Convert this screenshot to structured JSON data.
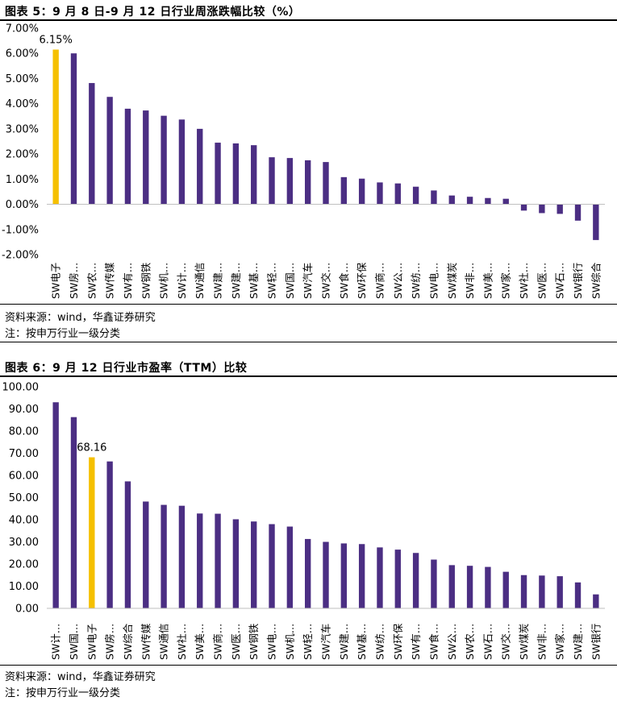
{
  "charts": [
    {
      "title": "图表 5：9 月 8 日-9 月 12 日行业周涨跌幅比较（%）",
      "source": "资料来源：wind，华鑫证券研究",
      "note": "注：按申万行业一级分类",
      "chart_data": {
        "type": "bar",
        "categories": [
          "SW电子",
          "SW房…",
          "SW农…",
          "SW传媒",
          "SW有…",
          "SW钢铁",
          "SW机…",
          "SW计…",
          "SW通信",
          "SW建…",
          "SW建…",
          "SW基…",
          "SW轻…",
          "SW国…",
          "SW汽车",
          "SW交…",
          "SW食…",
          "SW环保",
          "SW商…",
          "SW公…",
          "SW纺…",
          "SW电…",
          "SW煤炭",
          "SW非…",
          "SW美…",
          "SW家…",
          "SW社…",
          "SW医…",
          "SW石…",
          "SW银行",
          "SW综合"
        ],
        "values": [
          6.15,
          6.0,
          4.82,
          4.27,
          3.8,
          3.73,
          3.52,
          3.37,
          3.0,
          2.45,
          2.42,
          2.35,
          1.87,
          1.84,
          1.75,
          1.68,
          1.08,
          1.02,
          0.87,
          0.83,
          0.7,
          0.55,
          0.35,
          0.3,
          0.25,
          0.22,
          -0.25,
          -0.35,
          -0.38,
          -0.65,
          -1.42
        ],
        "highlight_index": 0,
        "highlight_label": "6.15%",
        "ylim": [
          -2,
          7
        ],
        "yticks": [
          -2,
          -1,
          0,
          1,
          2,
          3,
          4,
          5,
          6,
          7
        ],
        "ytick_labels": [
          "-2.00%",
          "-1.00%",
          "0.00%",
          "1.00%",
          "2.00%",
          "3.00%",
          "4.00%",
          "5.00%",
          "6.00%",
          "7.00%"
        ],
        "colors": {
          "bar": "#4B2E83",
          "highlight": "#F5C000",
          "axis": "#BFBFBF"
        },
        "grid": false
      }
    },
    {
      "title": "图表 6：9 月 12 日行业市盈率（TTM）比较",
      "source": "资料来源：wind，华鑫证券研究",
      "note": "注：按申万行业一级分类",
      "chart_data": {
        "type": "bar",
        "categories": [
          "SW计…",
          "SW国…",
          "SW电子",
          "SW房…",
          "SW综合",
          "SW传媒",
          "SW通信",
          "SW社…",
          "SW美…",
          "SW商…",
          "SW医…",
          "SW钢铁",
          "SW电…",
          "SW机…",
          "SW轻…",
          "SW汽车",
          "SW建…",
          "SW基…",
          "SW纺…",
          "SW环保",
          "SW有…",
          "SW食…",
          "SW公…",
          "SW农…",
          "SW石…",
          "SW交…",
          "SW煤炭",
          "SW非…",
          "SW家…",
          "SW建…",
          "SW银行"
        ],
        "values": [
          93.0,
          86.3,
          68.16,
          66.3,
          57.3,
          48.2,
          46.7,
          46.3,
          42.8,
          42.7,
          40.2,
          39.2,
          38.0,
          36.9,
          31.3,
          30.0,
          29.3,
          29.0,
          27.5,
          26.5,
          25.0,
          22.0,
          19.5,
          19.2,
          18.7,
          16.5,
          15.0,
          14.8,
          14.5,
          11.7,
          6.3
        ],
        "highlight_index": 2,
        "highlight_label": "68.16",
        "ylim": [
          0,
          100
        ],
        "yticks": [
          0,
          10,
          20,
          30,
          40,
          50,
          60,
          70,
          80,
          90,
          100
        ],
        "ytick_labels": [
          "0.00",
          "10.00",
          "20.00",
          "30.00",
          "40.00",
          "50.00",
          "60.00",
          "70.00",
          "80.00",
          "90.00",
          "100.00"
        ],
        "colors": {
          "bar": "#4B2E83",
          "highlight": "#F5C000",
          "axis": "#BFBFBF"
        },
        "grid": false
      }
    }
  ]
}
